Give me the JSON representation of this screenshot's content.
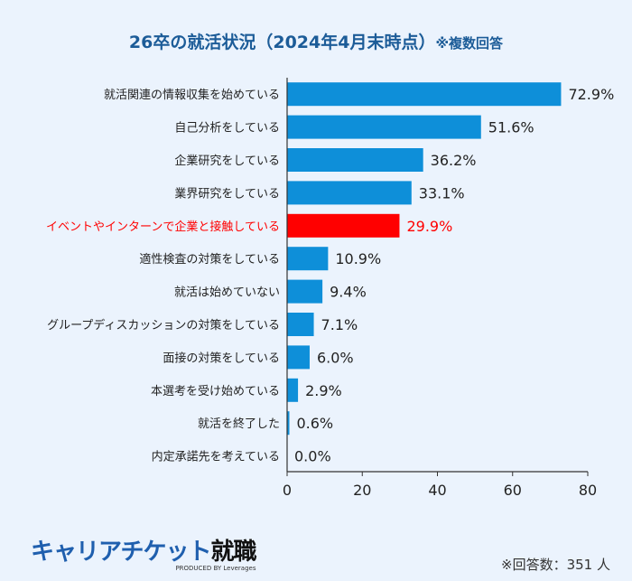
{
  "title": "26卒の就活状況（2024年4月末時点）",
  "title_note": "※複数回答",
  "footer": {
    "logo_main": "キャリアチケット",
    "logo_accent": "就職",
    "logo_sub": "PRODUCED BY Leverages",
    "respondents": "※回答数：351 人"
  },
  "chart_data": {
    "type": "bar",
    "orientation": "horizontal",
    "categories": [
      "就活関連の情報収集を始めている",
      "自己分析をしている",
      "企業研究をしている",
      "業界研究をしている",
      "イベントやインターンで企業と接触している",
      "適性検査の対策をしている",
      "就活は始めていない",
      "グループディスカッションの対策をしている",
      "面接の対策をしている",
      "本選考を受け始めている",
      "就活を終了した",
      "内定承諾先を考えている"
    ],
    "values": [
      72.9,
      51.6,
      36.2,
      33.1,
      29.9,
      10.9,
      9.4,
      7.1,
      6.0,
      2.9,
      0.6,
      0.0
    ],
    "labels": [
      "72.9%",
      "51.6%",
      "36.2%",
      "33.1%",
      "29.9%",
      "10.9%",
      "9.4%",
      "7.1%",
      "6.0%",
      "2.9%",
      "0.6%",
      "0.0%"
    ],
    "highlight_index": 4,
    "xlim": [
      0,
      80
    ],
    "xticks": [
      "0",
      "20",
      "40",
      "60",
      "80"
    ],
    "grid": false,
    "colors": {
      "bar": "#0e8fd9",
      "highlight": "#ff0000",
      "text": "#222222",
      "highlight_text": "#ff0000"
    }
  }
}
